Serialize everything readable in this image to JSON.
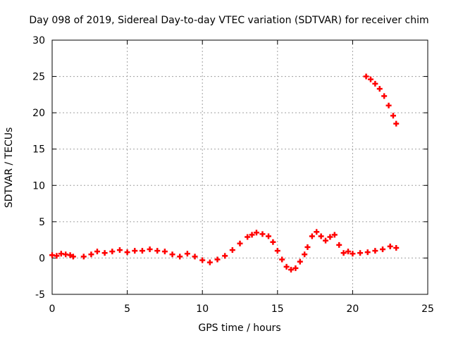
{
  "chart_data": {
    "type": "scatter",
    "title": "Day 098 of 2019, Sidereal Day-to-day VTEC variation (SDTVAR) for receiver chim",
    "xlabel": "GPS time / hours",
    "ylabel": "SDTVAR / TECUs",
    "xlim": [
      0,
      25
    ],
    "ylim": [
      -5,
      30
    ],
    "xticks": [
      0,
      5,
      10,
      15,
      20,
      25
    ],
    "yticks": [
      -5,
      0,
      5,
      10,
      15,
      20,
      25,
      30
    ],
    "grid": true,
    "legend": "none",
    "series": [
      {
        "name": "SDTVAR",
        "color": "#ff0000",
        "marker": "plus",
        "x": [
          0.0,
          0.3,
          0.6,
          0.9,
          1.2,
          1.4,
          2.1,
          2.6,
          3.0,
          3.5,
          4.0,
          4.5,
          5.0,
          5.5,
          6.0,
          6.5,
          7.0,
          7.5,
          8.0,
          8.5,
          9.0,
          9.5,
          10.0,
          10.5,
          11.0,
          11.5,
          12.0,
          12.5,
          13.0,
          13.3,
          13.6,
          14.0,
          14.4,
          14.7,
          15.0,
          15.3,
          15.6,
          15.9,
          16.2,
          16.5,
          16.8,
          17.0,
          17.3,
          17.6,
          17.9,
          18.2,
          18.5,
          18.8,
          19.1,
          19.4,
          19.7,
          20.0,
          20.5,
          21.0,
          21.5,
          22.0,
          22.5,
          22.9,
          20.9,
          21.2,
          21.5,
          21.8,
          22.1,
          22.4,
          22.7,
          22.9
        ],
        "y": [
          0.4,
          0.3,
          0.6,
          0.5,
          0.4,
          0.2,
          0.2,
          0.5,
          0.9,
          0.7,
          0.9,
          1.1,
          0.8,
          1.0,
          1.0,
          1.2,
          1.0,
          0.9,
          0.5,
          0.2,
          0.6,
          0.2,
          -0.3,
          -0.6,
          -0.2,
          0.3,
          1.1,
          2.0,
          2.9,
          3.2,
          3.5,
          3.3,
          3.0,
          2.2,
          1.0,
          -0.2,
          -1.2,
          -1.6,
          -1.4,
          -0.5,
          0.5,
          1.5,
          3.0,
          3.6,
          3.0,
          2.4,
          2.9,
          3.2,
          1.8,
          0.7,
          0.9,
          0.6,
          0.7,
          0.8,
          1.0,
          1.2,
          1.6,
          1.4,
          25.0,
          24.6,
          24.0,
          23.3,
          22.3,
          21.0,
          19.6,
          18.5
        ]
      }
    ]
  }
}
